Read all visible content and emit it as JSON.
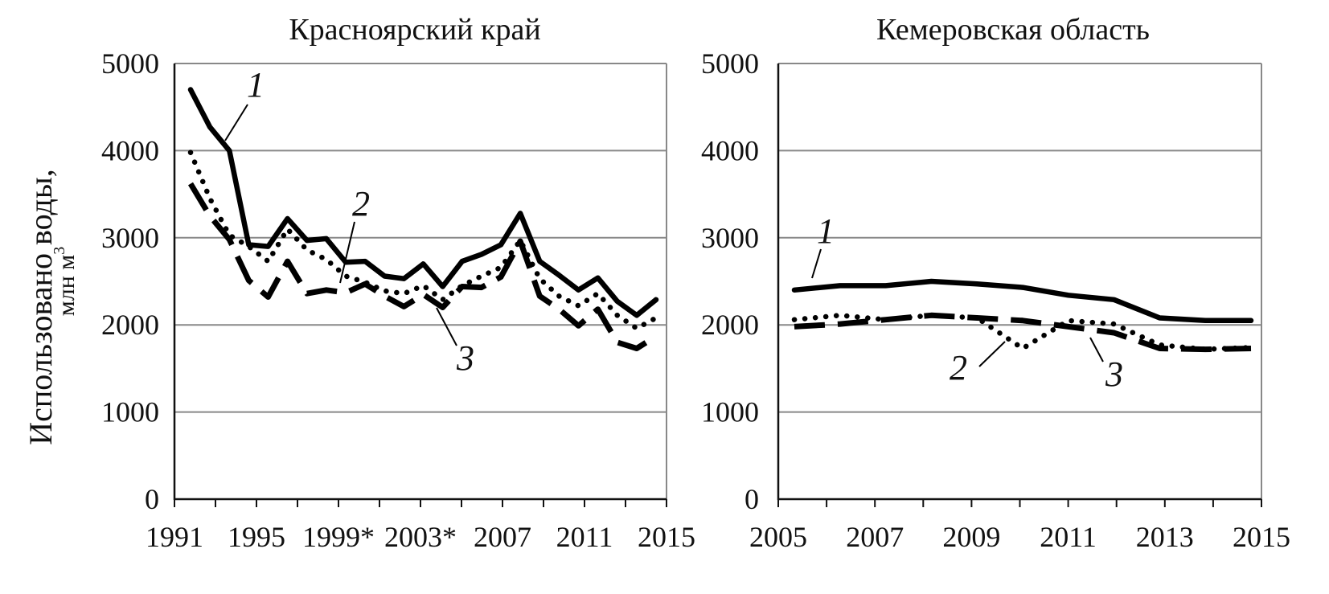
{
  "chart_data": [
    {
      "type": "line",
      "title": "Красноярский край",
      "ylabel": "Использовано воды,",
      "ylabel_unit": "млн м",
      "ylabel_unit_sup": "3",
      "ylim": [
        0,
        5000
      ],
      "yticks": [
        "0",
        "1000",
        "2000",
        "3000",
        "4000",
        "5000"
      ],
      "xticks": [
        "1991",
        "1995",
        "1999*",
        "2003*",
        "2007",
        "2011",
        "2015"
      ],
      "x": [
        1991,
        1992,
        1993,
        1994,
        1995,
        1996,
        1997,
        1998,
        1999,
        2000,
        2001,
        2002,
        2003,
        2004,
        2005,
        2006,
        2007,
        2008,
        2009,
        2010,
        2011,
        2012,
        2013,
        2014,
        2015
      ],
      "grid": "horizontal",
      "series": [
        {
          "name": "1",
          "style": "solid",
          "values": [
            4700,
            4270,
            4000,
            2920,
            2900,
            3220,
            2970,
            2990,
            2720,
            2730,
            2560,
            2530,
            2700,
            2440,
            2730,
            2810,
            2920,
            3280,
            2730,
            2570,
            2400,
            2540,
            2270,
            2110,
            2290
          ]
        },
        {
          "name": "2",
          "style": "dotted",
          "values": [
            3980,
            3450,
            3030,
            2900,
            2730,
            3100,
            2860,
            2750,
            2560,
            2490,
            2390,
            2360,
            2450,
            2290,
            2450,
            2560,
            2660,
            2970,
            2530,
            2330,
            2220,
            2360,
            2110,
            1960,
            2080
          ]
        },
        {
          "name": "3",
          "style": "dashed",
          "values": [
            3620,
            3250,
            2980,
            2510,
            2320,
            2730,
            2360,
            2400,
            2370,
            2470,
            2330,
            2210,
            2350,
            2200,
            2440,
            2430,
            2550,
            2960,
            2330,
            2180,
            1990,
            2180,
            1800,
            1730,
            1870
          ]
        }
      ],
      "markers": [
        {
          "text": "1",
          "series": "1"
        },
        {
          "text": "2",
          "series": "2"
        },
        {
          "text": "3",
          "series": "3"
        }
      ]
    },
    {
      "type": "line",
      "title": "Кемеровская область",
      "ylim": [
        0,
        5000
      ],
      "yticks": [
        "0",
        "1000",
        "2000",
        "3000",
        "4000",
        "5000"
      ],
      "xticks": [
        "2005",
        "2007",
        "2009",
        "2011",
        "2013",
        "2015"
      ],
      "x": [
        2005,
        2006,
        2007,
        2008,
        2009,
        2010,
        2011,
        2012,
        2013,
        2014,
        2015
      ],
      "grid": "horizontal",
      "series": [
        {
          "name": "1",
          "style": "solid",
          "values": [
            2400,
            2450,
            2450,
            2500,
            2470,
            2430,
            2340,
            2290,
            2080,
            2050,
            2050
          ]
        },
        {
          "name": "2",
          "style": "dotted",
          "values": [
            2060,
            2110,
            2060,
            2110,
            2080,
            1730,
            2050,
            2010,
            1770,
            1720,
            1740
          ]
        },
        {
          "name": "3",
          "style": "dashed",
          "values": [
            1980,
            2010,
            2060,
            2110,
            2080,
            2050,
            1980,
            1910,
            1730,
            1720,
            1730
          ]
        }
      ],
      "markers": [
        {
          "text": "1",
          "series": "1"
        },
        {
          "text": "2",
          "series": "2"
        },
        {
          "text": "3",
          "series": "3"
        }
      ]
    }
  ]
}
